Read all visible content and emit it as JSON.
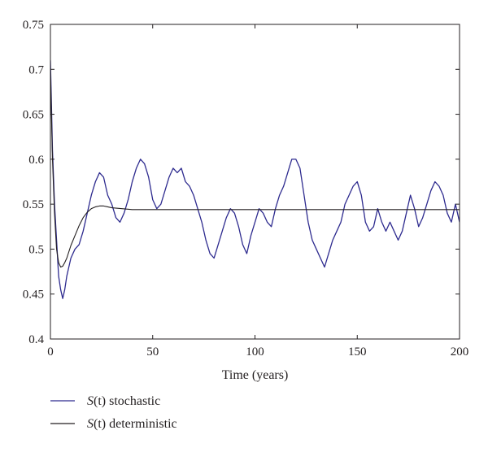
{
  "chart_data": {
    "type": "line",
    "title": "",
    "xlabel": "Time (years)",
    "ylabel": "",
    "xlim": [
      0,
      200
    ],
    "ylim": [
      0.4,
      0.75
    ],
    "x_ticks": [
      0,
      50,
      100,
      150,
      200
    ],
    "x_tick_labels": [
      "0",
      "50",
      "100",
      "150",
      "200"
    ],
    "y_ticks": [
      0.4,
      0.45,
      0.5,
      0.55,
      0.6,
      0.65,
      0.7,
      0.75
    ],
    "y_tick_labels": [
      "0.4",
      "0.45",
      "0.5",
      "0.55",
      "0.6",
      "0.65",
      "0.7",
      "0.75"
    ],
    "grid": false,
    "legend_position": "below-left",
    "legend": [
      {
        "label_italic": "S",
        "label_rest": "(t) stochastic"
      },
      {
        "label_italic": "S",
        "label_rest": "(t) deterministic"
      }
    ],
    "series": [
      {
        "name": "S(t) stochastic",
        "color": "#2e2b8f",
        "x": [
          0,
          1,
          2,
          3,
          4,
          5,
          6,
          7,
          8,
          9,
          10,
          12,
          14,
          16,
          18,
          20,
          22,
          24,
          26,
          28,
          30,
          32,
          34,
          36,
          38,
          40,
          42,
          44,
          46,
          48,
          50,
          52,
          54,
          56,
          58,
          60,
          62,
          64,
          66,
          68,
          70,
          72,
          74,
          76,
          78,
          80,
          82,
          84,
          86,
          88,
          90,
          92,
          94,
          96,
          98,
          100,
          102,
          104,
          106,
          108,
          110,
          112,
          114,
          116,
          118,
          120,
          122,
          124,
          126,
          128,
          130,
          132,
          134,
          136,
          138,
          140,
          142,
          144,
          146,
          148,
          150,
          152,
          154,
          156,
          158,
          160,
          162,
          164,
          166,
          168,
          170,
          172,
          174,
          176,
          178,
          180,
          182,
          184,
          186,
          188,
          190,
          192,
          194,
          196,
          198,
          200
        ],
        "values": [
          0.71,
          0.61,
          0.55,
          0.51,
          0.47,
          0.455,
          0.445,
          0.455,
          0.47,
          0.48,
          0.49,
          0.5,
          0.505,
          0.52,
          0.54,
          0.56,
          0.575,
          0.585,
          0.58,
          0.56,
          0.55,
          0.535,
          0.53,
          0.54,
          0.555,
          0.575,
          0.59,
          0.6,
          0.595,
          0.58,
          0.555,
          0.545,
          0.55,
          0.565,
          0.58,
          0.59,
          0.585,
          0.59,
          0.575,
          0.57,
          0.56,
          0.545,
          0.53,
          0.51,
          0.495,
          0.49,
          0.505,
          0.52,
          0.535,
          0.545,
          0.54,
          0.525,
          0.505,
          0.495,
          0.515,
          0.53,
          0.545,
          0.54,
          0.53,
          0.525,
          0.545,
          0.56,
          0.57,
          0.585,
          0.6,
          0.6,
          0.59,
          0.56,
          0.53,
          0.51,
          0.5,
          0.49,
          0.48,
          0.495,
          0.51,
          0.52,
          0.53,
          0.55,
          0.56,
          0.57,
          0.575,
          0.56,
          0.53,
          0.52,
          0.525,
          0.545,
          0.53,
          0.52,
          0.53,
          0.52,
          0.51,
          0.52,
          0.54,
          0.56,
          0.545,
          0.525,
          0.535,
          0.55,
          0.565,
          0.575,
          0.57,
          0.56,
          0.54,
          0.53,
          0.55,
          0.53
        ]
      },
      {
        "name": "S(t) deterministic",
        "color": "#231f20",
        "x": [
          0,
          1,
          2,
          3,
          4,
          5,
          6,
          7,
          8,
          9,
          10,
          12,
          14,
          16,
          18,
          20,
          22,
          24,
          26,
          28,
          30,
          35,
          40,
          50,
          60,
          80,
          100,
          120,
          150,
          200
        ],
        "values": [
          0.7,
          0.6,
          0.54,
          0.5,
          0.485,
          0.48,
          0.481,
          0.485,
          0.49,
          0.497,
          0.504,
          0.515,
          0.526,
          0.535,
          0.541,
          0.545,
          0.547,
          0.548,
          0.548,
          0.547,
          0.546,
          0.545,
          0.544,
          0.544,
          0.544,
          0.544,
          0.544,
          0.544,
          0.544,
          0.544
        ]
      }
    ]
  }
}
